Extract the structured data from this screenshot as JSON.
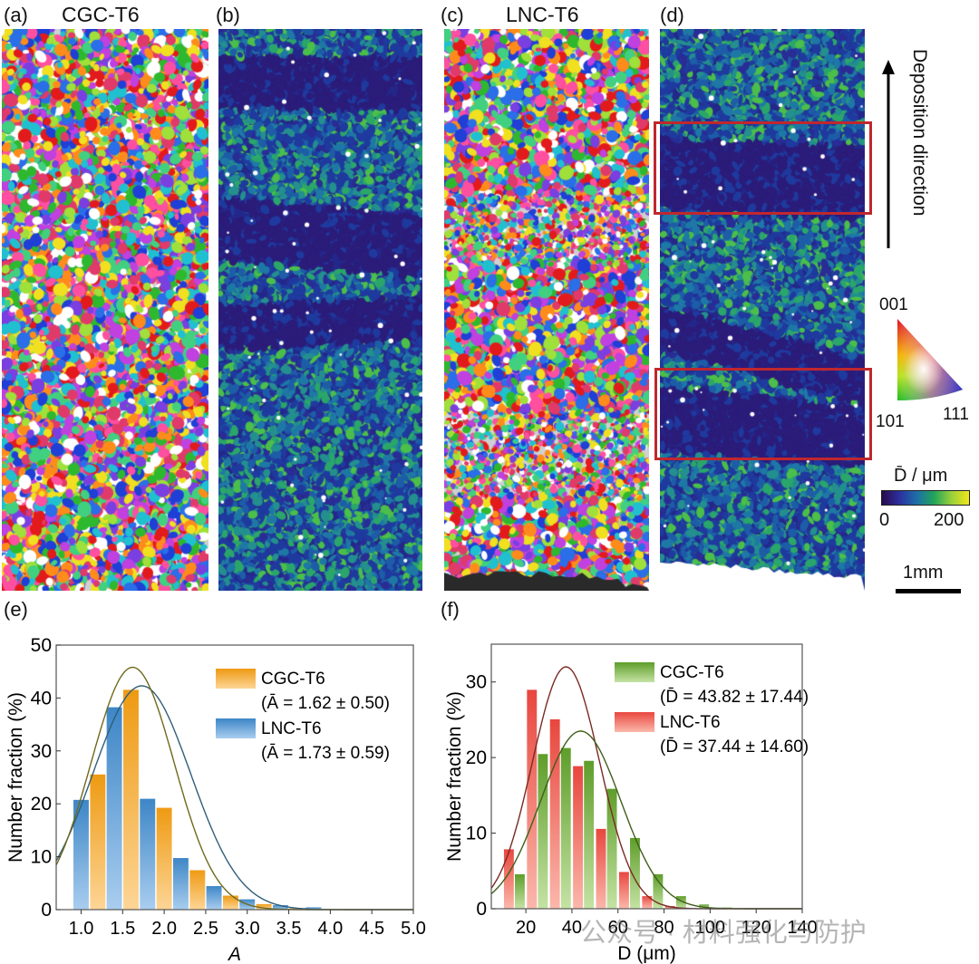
{
  "figure": {
    "panels": {
      "a": {
        "label": "(a)",
        "title": "CGC-T6",
        "map_type": "IPF orientation map"
      },
      "b": {
        "label": "(b)",
        "map_type": "grain size map"
      },
      "c": {
        "label": "(c)",
        "title": "LNC-T6",
        "map_type": "IPF orientation map"
      },
      "d": {
        "label": "(d)",
        "map_type": "grain size map"
      },
      "e": {
        "label": "(e)"
      },
      "f": {
        "label": "(f)"
      }
    },
    "deposition_direction": {
      "text": "Deposition direction",
      "icon": "arrow-up-icon"
    },
    "ipf_legend": {
      "corner_001": "001",
      "corner_101": "101",
      "corner_111": "111"
    },
    "colorbar": {
      "title": "D̄ / μm",
      "min": "0",
      "max": "200",
      "colors": [
        "#2a0b4a",
        "#2c2f9e",
        "#1d6fa8",
        "#22a45a",
        "#9bd13a",
        "#f2e61a"
      ]
    },
    "scale_bar": {
      "text": "1mm"
    },
    "watermark": "公众号 · 材料强化与防护"
  },
  "chart_data": [
    {
      "type": "bar",
      "title": "",
      "xlabel": "A",
      "ylabel": "Number fraction (%)",
      "xlim": [
        0.7,
        5.0
      ],
      "ylim": [
        0,
        50
      ],
      "xticks": [
        "1.0",
        "1.5",
        "2.0",
        "2.5",
        "3.0",
        "3.5",
        "4.0",
        "4.5",
        "5.0"
      ],
      "yticks": [
        "0",
        "10",
        "20",
        "30",
        "40",
        "50"
      ],
      "grid": false,
      "legend_position": "top-right",
      "categories": [
        1.1,
        1.5,
        1.9,
        2.3,
        2.7,
        3.1,
        3.5,
        3.9,
        4.3
      ],
      "series": [
        {
          "name": "LNC-T6",
          "stat": "(Ā = 1.73 ± 0.59)",
          "color": "#3d86c6",
          "light": "#a9cdef",
          "values": [
            20.8,
            38.3,
            21.0,
            9.8,
            4.5,
            2.0,
            0.9,
            0.5,
            0.1
          ],
          "fit": {
            "mean": 1.73,
            "sd": 0.59,
            "peak": 42.3
          },
          "fit_color": "#2f5f78"
        },
        {
          "name": "CGC-T6",
          "stat": "(Ā = 1.62 ± 0.50)",
          "color": "#ee9a12",
          "light": "#fdd596",
          "values": [
            25.6,
            41.6,
            19.3,
            7.5,
            2.7,
            1.1,
            0.3,
            0.1,
            0.0
          ],
          "fit": {
            "mean": 1.62,
            "sd": 0.5,
            "peak": 45.8
          },
          "fit_color": "#6f6a1e"
        }
      ]
    },
    {
      "type": "bar",
      "title": "",
      "xlabel": "D (μm)",
      "ylabel": "Number fraction (%)",
      "xlim": [
        5,
        140
      ],
      "ylim": [
        0,
        35
      ],
      "xticks": [
        "20",
        "40",
        "60",
        "80",
        "100",
        "120",
        "140"
      ],
      "yticks": [
        "0",
        "10",
        "20",
        "30"
      ],
      "grid": false,
      "legend_position": "top-right",
      "categories": [
        15,
        25,
        35,
        45,
        55,
        65,
        75,
        85,
        95,
        105
      ],
      "series": [
        {
          "name": "LNC-T6",
          "stat": "(D̄ = 37.44 ± 14.60)",
          "color": "#e8463e",
          "light": "#fbb8ab",
          "values": [
            7.9,
            29.0,
            25.1,
            18.9,
            10.6,
            4.9,
            1.7,
            0.4,
            0.0,
            0.0
          ],
          "fit": {
            "mean": 37.44,
            "sd": 14.6,
            "peak": 32.0
          },
          "fit_color": "#7a2a22"
        },
        {
          "name": "CGC-T6",
          "stat": "(D̄ = 43.82 ± 17.44)",
          "color": "#5e9d2a",
          "light": "#c5e3a4",
          "values": [
            4.6,
            20.5,
            21.3,
            19.6,
            15.9,
            9.4,
            4.6,
            1.7,
            0.6,
            0.2
          ],
          "fit": {
            "mean": 43.82,
            "sd": 17.44,
            "peak": 23.5
          },
          "fit_color": "#3f5f1a"
        }
      ]
    }
  ]
}
